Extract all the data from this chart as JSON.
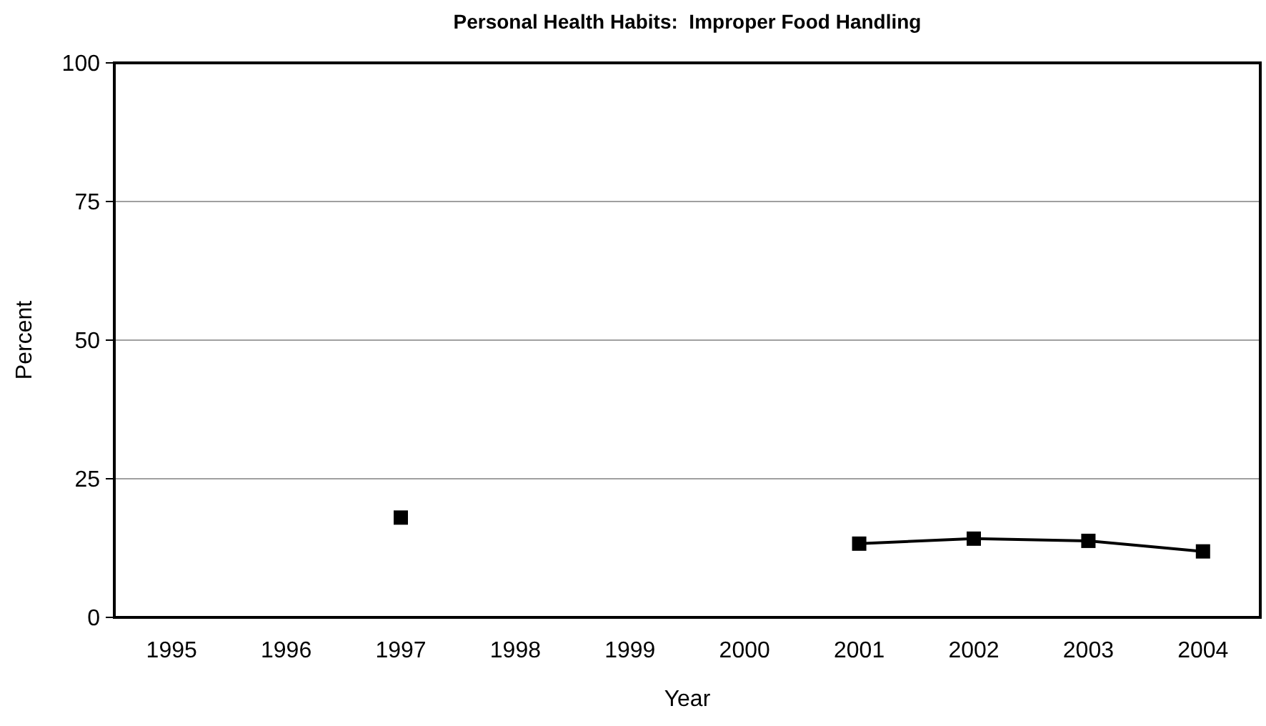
{
  "chart_data": {
    "type": "line",
    "title": "Personal Health Habits:  Improper Food Handling",
    "xlabel": "Year",
    "ylabel": "Percent",
    "categories": [
      "1995",
      "1996",
      "1997",
      "1998",
      "1999",
      "2000",
      "2001",
      "2002",
      "2003",
      "2004"
    ],
    "series": [
      {
        "color": "#000000",
        "values": [
          null,
          null,
          18,
          null,
          null,
          null,
          13.3,
          14.2,
          13.8,
          11.9
        ]
      }
    ],
    "ylim": [
      0,
      100
    ],
    "yticks": [
      0,
      25,
      50,
      75,
      100
    ],
    "grid": "y",
    "marker": "square",
    "line_style": "solid"
  }
}
